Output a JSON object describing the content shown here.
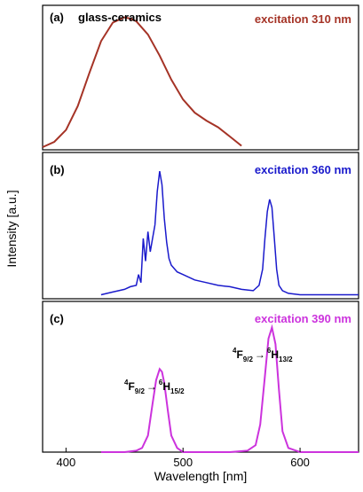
{
  "chart_data": [
    {
      "type": "line",
      "panel_label": "(a)",
      "title": "glass-ceramics",
      "annotation": "excitation 310 nm",
      "color": "#a53326",
      "xlim": [
        380,
        650
      ],
      "ylim": [
        0,
        1.05
      ],
      "series": [
        {
          "x": [
            380,
            390,
            400,
            410,
            420,
            430,
            440,
            450,
            455,
            460,
            470,
            480,
            490,
            500,
            510,
            520,
            530,
            540,
            550
          ],
          "y": [
            0.02,
            0.06,
            0.15,
            0.33,
            0.58,
            0.82,
            0.96,
            1.0,
            0.99,
            0.97,
            0.87,
            0.71,
            0.53,
            0.38,
            0.28,
            0.22,
            0.17,
            0.1,
            0.03
          ]
        }
      ]
    },
    {
      "type": "line",
      "panel_label": "(b)",
      "annotation": "excitation 360 nm",
      "color": "#1a1acc",
      "xlim": [
        380,
        650
      ],
      "ylim": [
        0,
        1.05
      ],
      "series": [
        {
          "x": [
            430,
            440,
            450,
            455,
            460,
            462,
            464,
            466,
            468,
            470,
            472,
            474,
            476,
            478,
            480,
            482,
            484,
            486,
            488,
            490,
            495,
            500,
            510,
            520,
            530,
            540,
            550,
            560,
            565,
            568,
            570,
            572,
            574,
            576,
            578,
            580,
            582,
            585,
            590,
            600,
            610,
            620,
            630,
            640,
            650
          ],
          "y": [
            0.03,
            0.05,
            0.07,
            0.09,
            0.1,
            0.18,
            0.12,
            0.45,
            0.28,
            0.5,
            0.35,
            0.45,
            0.55,
            0.8,
            0.95,
            0.85,
            0.6,
            0.42,
            0.3,
            0.25,
            0.2,
            0.18,
            0.14,
            0.12,
            0.1,
            0.09,
            0.07,
            0.06,
            0.1,
            0.22,
            0.45,
            0.65,
            0.74,
            0.68,
            0.45,
            0.22,
            0.1,
            0.06,
            0.04,
            0.03,
            0.03,
            0.03,
            0.03,
            0.03,
            0.03
          ]
        }
      ]
    },
    {
      "type": "line",
      "panel_label": "(c)",
      "annotation": "excitation 390 nm",
      "color": "#cc33dd",
      "xlim": [
        380,
        650
      ],
      "ylim": [
        0,
        1.05
      ],
      "xticks": [
        400,
        500,
        600
      ],
      "xlabel": "Wavelength [nm]",
      "ylabel": "Intensity [a.u.]",
      "transitions": [
        {
          "upper": "F",
          "upper_sup": "4",
          "upper_sub": "9/2",
          "arrow": "→",
          "lower": "H",
          "lower_sup": "6",
          "lower_sub": "15/2"
        },
        {
          "upper": "F",
          "upper_sup": "4",
          "upper_sub": "9/2",
          "arrow": "→",
          "lower": "H",
          "lower_sup": "6",
          "lower_sub": "13/2"
        }
      ],
      "series": [
        {
          "x": [
            430,
            450,
            460,
            465,
            470,
            474,
            477,
            480,
            482,
            484,
            487,
            490,
            495,
            500,
            520,
            540,
            555,
            562,
            566,
            570,
            573,
            576,
            579,
            582,
            585,
            590,
            600,
            620,
            650
          ],
          "y": [
            0.0,
            0.0,
            0.01,
            0.03,
            0.12,
            0.35,
            0.52,
            0.6,
            0.58,
            0.5,
            0.3,
            0.12,
            0.03,
            0.0,
            0.0,
            0.0,
            0.01,
            0.05,
            0.2,
            0.55,
            0.82,
            0.9,
            0.78,
            0.45,
            0.15,
            0.03,
            0.0,
            0.0,
            0.0
          ]
        }
      ]
    }
  ]
}
